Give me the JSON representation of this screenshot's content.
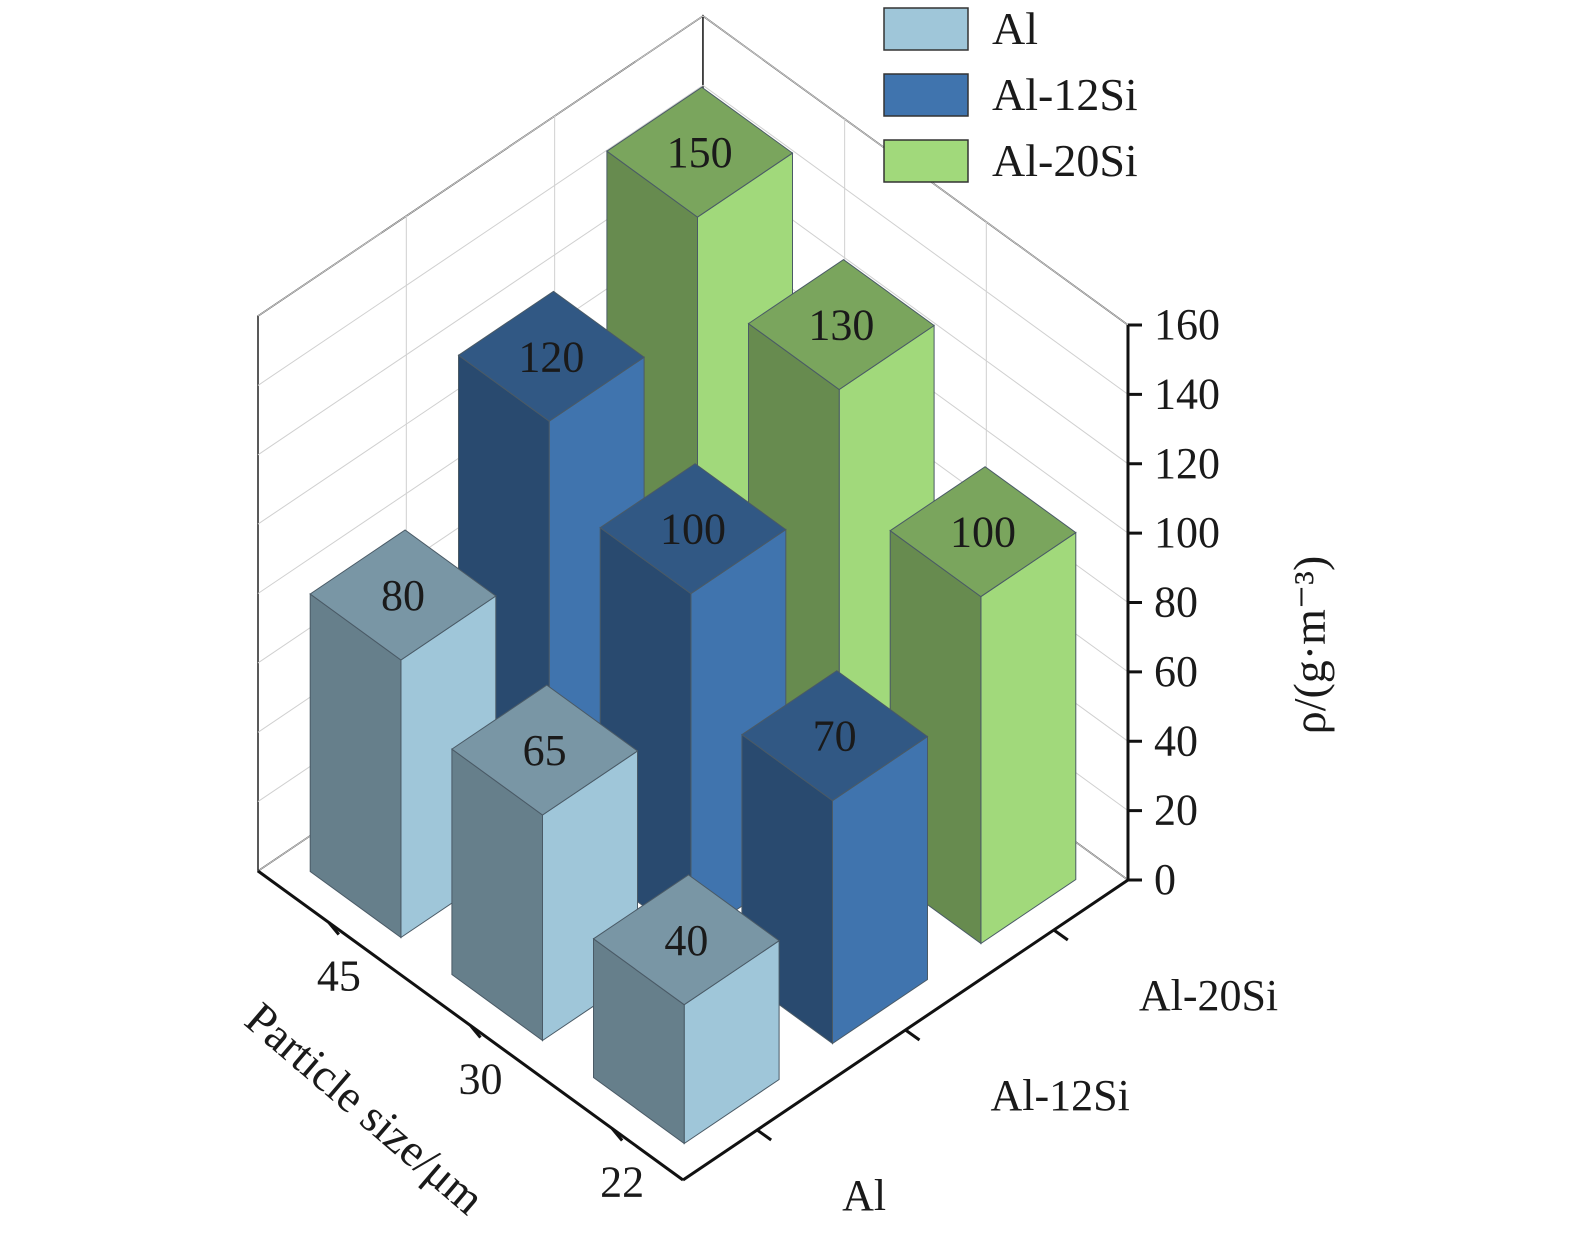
{
  "chart_data": {
    "type": "bar3d",
    "ylabel": "ρ/(g·m⁻³)",
    "xlabel": "Particle size/μm",
    "x_categories": [
      "45",
      "30",
      "22"
    ],
    "series_categories": [
      "Al",
      "Al-12Si",
      "Al-20Si"
    ],
    "zlim": [
      0,
      160
    ],
    "z_ticks": [
      0,
      20,
      40,
      60,
      80,
      100,
      120,
      140,
      160
    ],
    "grid": true,
    "legend_position": "top-right",
    "series": [
      {
        "name": "Al",
        "color": "#9fc6d9",
        "values": [
          80,
          65,
          40
        ]
      },
      {
        "name": "Al-12Si",
        "color": "#4074ae",
        "values": [
          120,
          100,
          70
        ]
      },
      {
        "name": "Al-20Si",
        "color": "#a1d97b",
        "values": [
          150,
          130,
          100
        ]
      }
    ]
  }
}
